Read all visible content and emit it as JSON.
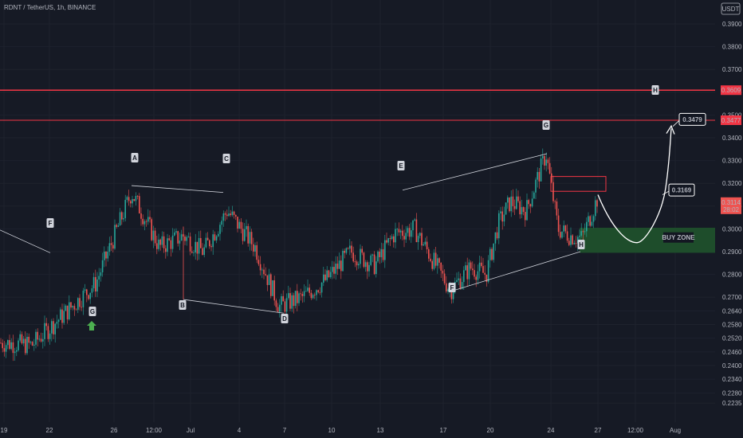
{
  "header": {
    "title": "RDNT / TetherUS, 1h, BINANCE",
    "currency": "USDT"
  },
  "colors": {
    "background": "#161a25",
    "bull": "#26a69a",
    "bear": "#ef5350",
    "resistance": "#f23645",
    "buy_zone": "#1e4d2b",
    "annotation": "#d1d4dc",
    "arrow": "#4caf50"
  },
  "chart_data": {
    "type": "candlestick",
    "symbol": "RDNT / TetherUS",
    "interval": "1h",
    "exchange": "BINANCE",
    "y_axis": {
      "range": [
        0.2205,
        0.395
      ],
      "ticks": [
        "0.3900",
        "0.3800",
        "0.3700",
        "0.3600",
        "0.3500",
        "0.3400",
        "0.3300",
        "0.3200",
        "0.3100",
        "0.3000",
        "0.2900",
        "0.2800",
        "0.2700",
        "0.2640",
        "0.2580",
        "0.2520",
        "0.2460",
        "0.2400",
        "0.2340",
        "0.2280",
        "0.2235"
      ]
    },
    "x_axis": {
      "ticks": [
        "19",
        "22",
        "26",
        "12:00",
        "Jul",
        "4",
        "7",
        "10",
        "13",
        "17",
        "20",
        "24",
        "27",
        "12:00",
        "Aug"
      ]
    },
    "price_labels": [
      {
        "value": "0.3609",
        "kind": "resistance"
      },
      {
        "value": "0.3477",
        "kind": "resistance"
      },
      {
        "value": "0.3114",
        "sub": "28:02",
        "kind": "last"
      }
    ],
    "resistance_levels": [
      0.3609,
      0.3477
    ],
    "buy_zone": {
      "label": "BUY ZONE",
      "from": 0.2895,
      "to": 0.3005
    },
    "targets": [
      {
        "label": "0.3169",
        "value": 0.3169
      },
      {
        "label": "0.3479",
        "value": 0.3479
      }
    ],
    "wave_labels": [
      {
        "label": "F",
        "price": 0.288
      },
      {
        "label": "G",
        "price": 0.26
      },
      {
        "label": "A",
        "price": 0.319
      },
      {
        "label": "B",
        "price": 0.268
      },
      {
        "label": "C",
        "price": 0.316
      },
      {
        "label": "D",
        "price": 0.264
      },
      {
        "label": "E",
        "price": 0.317
      },
      {
        "label": "F",
        "price": 0.2725
      },
      {
        "label": "G",
        "price": 0.333
      },
      {
        "label": "H",
        "price": 0.291
      },
      {
        "label": "H",
        "price": 0.3479
      }
    ],
    "series_path": [
      [
        0,
        0.25
      ],
      [
        40,
        0.249
      ],
      [
        120,
        0.276
      ],
      [
        165,
        0.316
      ],
      [
        200,
        0.292
      ],
      [
        230,
        0.297
      ],
      [
        255,
        0.29
      ],
      [
        285,
        0.308
      ],
      [
        320,
        0.292
      ],
      [
        350,
        0.266
      ],
      [
        380,
        0.27
      ],
      [
        410,
        0.278
      ],
      [
        440,
        0.29
      ],
      [
        470,
        0.284
      ],
      [
        495,
        0.298
      ],
      [
        520,
        0.3
      ],
      [
        545,
        0.285
      ],
      [
        565,
        0.273
      ],
      [
        590,
        0.283
      ],
      [
        610,
        0.28
      ],
      [
        625,
        0.302
      ],
      [
        640,
        0.312
      ],
      [
        660,
        0.308
      ],
      [
        685,
        0.333
      ],
      [
        700,
        0.3
      ],
      [
        715,
        0.297
      ],
      [
        730,
        0.296
      ],
      [
        750,
        0.314
      ]
    ],
    "projection_path": [
      [
        750,
        0.315
      ],
      [
        795,
        0.294
      ],
      [
        835,
        0.318
      ],
      [
        842,
        0.344
      ]
    ]
  }
}
